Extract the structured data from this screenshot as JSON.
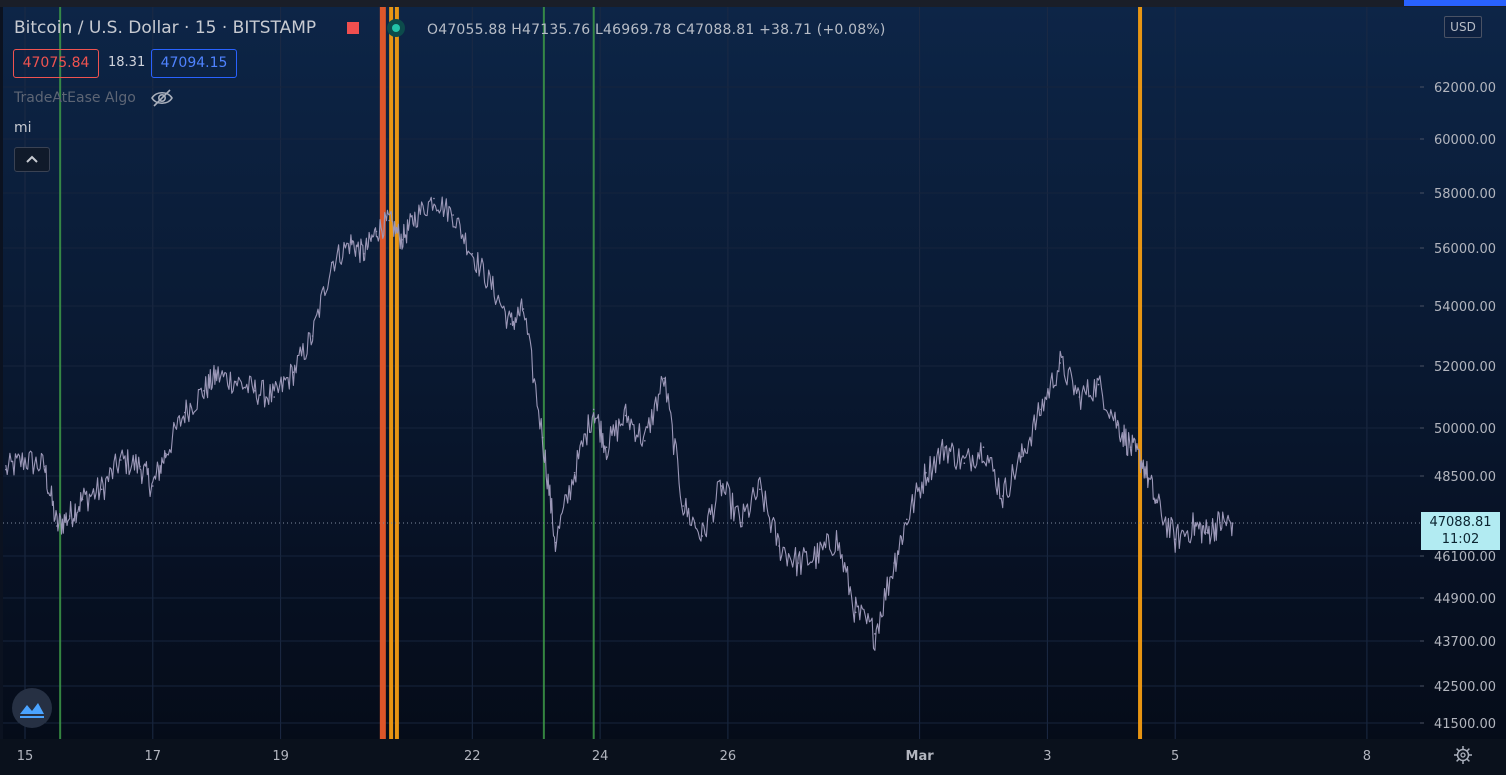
{
  "header": {
    "symbol_title": "Bitcoin / U.S. Dollar · 15 · BITSTAMP",
    "ohlc": "O47055.88  H47135.76  L46969.78  C47088.81  +38.71 (+0.08%)",
    "sell_price": "47075.84",
    "spread": "18.31",
    "buy_price": "47094.15",
    "indicator_name": "TradeAtEase Algo",
    "indicator_short": "mi",
    "currency_button": "USD"
  },
  "last_price": {
    "value": "47088.81",
    "countdown": "11:02"
  },
  "icons": {
    "visibility": "eye-off-icon",
    "collapse": "chevron-up-icon",
    "logo": "tradingview-logo-icon",
    "settings": "gear-icon"
  },
  "colors": {
    "price_line": "#9c98b8",
    "signal_green": "#3d9a48",
    "signal_orange": "#f39c12",
    "signal_red": "#e85a2a",
    "last_price_bg": "#b2ebf2",
    "sell": "#ef5350",
    "buy": "#2962ff"
  },
  "chart_data": {
    "type": "line",
    "title": "Bitcoin / U.S. Dollar · 15 · BITSTAMP",
    "xlabel": "",
    "ylabel": "",
    "x_tick_labels": [
      "15",
      "17",
      "19",
      "22",
      "24",
      "26",
      "Mar",
      "3",
      "5",
      "8"
    ],
    "x_tick_days": [
      0,
      2,
      4,
      7,
      9,
      11,
      14,
      16,
      18,
      21
    ],
    "y_tick_labels": [
      "62000.00",
      "60000.00",
      "58000.00",
      "56000.00",
      "54000.00",
      "52000.00",
      "50000.00",
      "48500.00",
      "46100.00",
      "44900.00",
      "43700.00",
      "42500.00",
      "41500.00"
    ],
    "y_ticks": [
      62000,
      60000,
      58000,
      56000,
      54000,
      52000,
      50000,
      48500,
      46100,
      44900,
      43700,
      42500,
      41500
    ],
    "ylim": [
      41000,
      64500
    ],
    "series": [
      {
        "days": [
          -0.3,
          0.0,
          0.3,
          0.5,
          0.7,
          0.9,
          1.2,
          1.5,
          1.8,
          2.0,
          2.2,
          2.5,
          2.8,
          3.0,
          3.3,
          3.6,
          3.9,
          4.2,
          4.5,
          4.8,
          5.1,
          5.3,
          5.5,
          5.7,
          5.9,
          6.1,
          6.4,
          6.7,
          7.0,
          7.3,
          7.6,
          7.8,
          8.1,
          8.3,
          8.6,
          8.9,
          9.1,
          9.4,
          9.7,
          10.0,
          10.3,
          10.6,
          10.9,
          11.2,
          11.5,
          11.8,
          12.1,
          12.4,
          12.7,
          13.0,
          13.3,
          13.6,
          13.8,
          14.1,
          14.4,
          14.7,
          15.0,
          15.3,
          15.6,
          15.9,
          16.2,
          16.5,
          16.8,
          17.1,
          17.3,
          17.5,
          17.7,
          18.0,
          18.3,
          18.5,
          18.7,
          18.9
        ],
        "values": [
          48700,
          49000,
          48800,
          47000,
          47300,
          47800,
          48100,
          49000,
          48800,
          48200,
          49200,
          50500,
          51200,
          51700,
          51500,
          51200,
          51000,
          51800,
          53000,
          55500,
          56200,
          55800,
          56600,
          57000,
          56300,
          57100,
          57800,
          57200,
          55800,
          54700,
          53400,
          53900,
          49700,
          46500,
          48600,
          50600,
          49400,
          50400,
          49600,
          51600,
          47600,
          46700,
          48200,
          47100,
          48100,
          46400,
          45900,
          46100,
          46600,
          44500,
          43900,
          45900,
          47200,
          48600,
          49400,
          48900,
          49400,
          47900,
          49100,
          50600,
          52100,
          51000,
          51400,
          50100,
          49400,
          48900,
          47700,
          46600,
          47000,
          46800,
          47100,
          47089
        ]
      }
    ],
    "signals": [
      {
        "day": 0.55,
        "color": "green"
      },
      {
        "day": 5.6,
        "color": "red"
      },
      {
        "day": 5.73,
        "color": "orange"
      },
      {
        "day": 5.82,
        "color": "orange"
      },
      {
        "day": 8.12,
        "color": "green"
      },
      {
        "day": 8.9,
        "color": "green"
      },
      {
        "day": 17.45,
        "color": "orange"
      }
    ],
    "current_price": 47088.81,
    "grid": true,
    "legend": "none"
  }
}
